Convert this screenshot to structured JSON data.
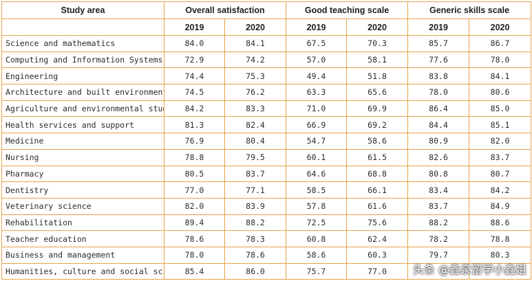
{
  "table": {
    "headers": {
      "study_area": "Study area",
      "groups": [
        "Overall satisfaction",
        "Good teaching scale",
        "Generic skills scale"
      ],
      "years": [
        "2019",
        "2020"
      ]
    },
    "rows": [
      {
        "area": "Science and mathematics",
        "values": [
          "84.0",
          "84.1",
          "67.5",
          "70.3",
          "85.7",
          "86.7"
        ]
      },
      {
        "area": "Computing and Information Systems",
        "values": [
          "72.9",
          "74.2",
          "57.0",
          "58.1",
          "77.6",
          "78.0"
        ]
      },
      {
        "area": "Engineering",
        "values": [
          "74.4",
          "75.3",
          "49.4",
          "51.8",
          "83.8",
          "84.1"
        ]
      },
      {
        "area": "Architecture and built environment",
        "values": [
          "74.5",
          "76.2",
          "63.3",
          "65.6",
          "78.0",
          "80.6"
        ]
      },
      {
        "area": "Agriculture and environmental studies",
        "values": [
          "84.2",
          "83.3",
          "71.0",
          "69.9",
          "86.4",
          "85.0"
        ]
      },
      {
        "area": "Health services and support",
        "values": [
          "81.3",
          "82.4",
          "66.9",
          "69.2",
          "84.4",
          "85.1"
        ]
      },
      {
        "area": "Medicine",
        "values": [
          "76.9",
          "80.4",
          "54.7",
          "58.6",
          "80.9",
          "82.0"
        ]
      },
      {
        "area": "Nursing",
        "values": [
          "78.8",
          "79.5",
          "60.1",
          "61.5",
          "82.6",
          "83.7"
        ]
      },
      {
        "area": "Pharmacy",
        "values": [
          "80.5",
          "83.7",
          "64.6",
          "68.8",
          "80.8",
          "80.7"
        ]
      },
      {
        "area": "Dentistry",
        "values": [
          "77.0",
          "77.1",
          "58.5",
          "66.1",
          "83.4",
          "84.2"
        ]
      },
      {
        "area": "Veterinary science",
        "values": [
          "82.0",
          "83.9",
          "57.8",
          "61.6",
          "83.7",
          "84.9"
        ]
      },
      {
        "area": "Rehabilitation",
        "values": [
          "89.4",
          "88.2",
          "72.5",
          "75.6",
          "88.2",
          "88.6"
        ]
      },
      {
        "area": "Teacher education",
        "values": [
          "78.6",
          "78.3",
          "60.8",
          "62.4",
          "78.2",
          "78.8"
        ]
      },
      {
        "area": "Business and management",
        "values": [
          "78.0",
          "78.6",
          "58.6",
          "60.3",
          "79.7",
          "80.3"
        ]
      },
      {
        "area": "Humanities, culture and social sciences",
        "values": [
          "85.4",
          "86.0",
          "75.7",
          "77.0",
          "",
          ""
        ]
      }
    ]
  },
  "watermark": "头条 @鑫泉留学小鑫姐",
  "colors": {
    "border": "#e6a24a",
    "text": "#2b2b2b"
  }
}
